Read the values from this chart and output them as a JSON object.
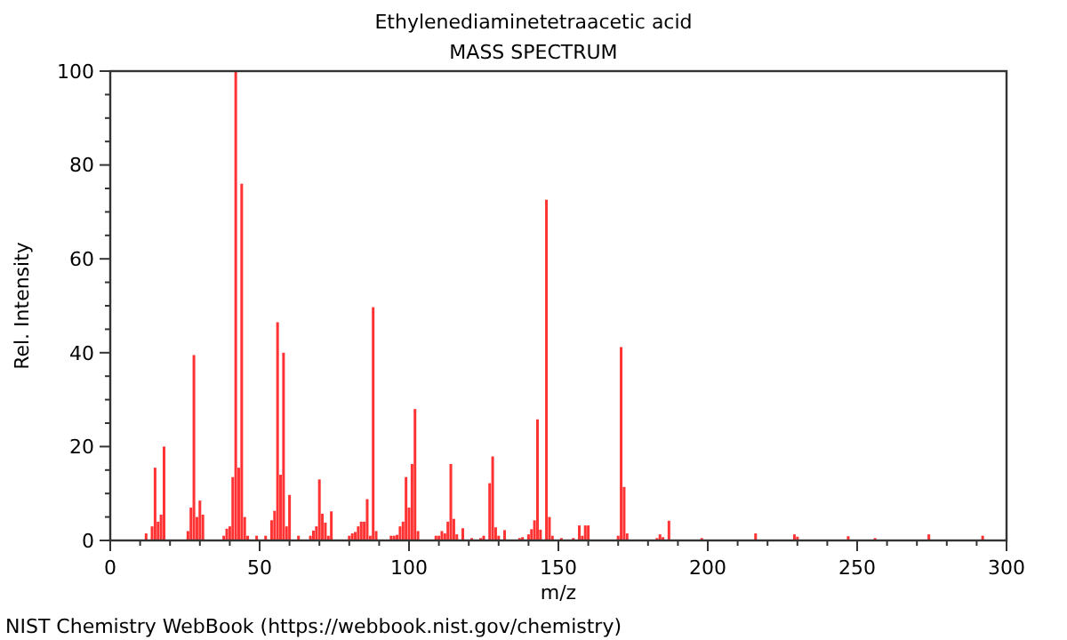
{
  "chart_data": {
    "type": "bar",
    "title": "Ethylenediaminetetraacetic acid",
    "subtitle": "MASS SPECTRUM",
    "xlabel": "m/z",
    "ylabel": "Rel. Intensity",
    "annotations": [
      "NIST Chemistry WebBook (https://webbook.nist.gov/chemistry)"
    ],
    "x": [
      12,
      14,
      15,
      16,
      17,
      18,
      26,
      27,
      28,
      29,
      30,
      31,
      38,
      39,
      40,
      41,
      42,
      43,
      44,
      45,
      46,
      49,
      52,
      54,
      55,
      56,
      57,
      58,
      59,
      60,
      63,
      67,
      68,
      69,
      70,
      71,
      72,
      73,
      74,
      80,
      81,
      82,
      83,
      84,
      85,
      86,
      87,
      88,
      89,
      94,
      95,
      96,
      97,
      98,
      99,
      100,
      101,
      102,
      103,
      109,
      110,
      111,
      112,
      113,
      114,
      115,
      116,
      118,
      121,
      124,
      125,
      127,
      128,
      129,
      130,
      132,
      137,
      138,
      140,
      141,
      142,
      143,
      144,
      146,
      147,
      148,
      151,
      155,
      157,
      158,
      159,
      160,
      170,
      171,
      172,
      173,
      183,
      184,
      185,
      187,
      198,
      216,
      229,
      230,
      247,
      256,
      274,
      292
    ],
    "values": [
      1.5,
      3,
      15.5,
      4,
      5.5,
      20,
      2,
      7,
      39.5,
      5,
      8.5,
      5.5,
      1,
      2.5,
      3,
      13.5,
      100,
      15.5,
      76,
      5,
      1,
      1,
      1,
      4.3,
      6.3,
      46.5,
      14,
      40,
      3,
      9.7,
      1,
      1,
      2.1,
      3,
      13,
      5.7,
      3.8,
      1,
      6.2,
      1,
      1.5,
      1.8,
      3,
      4,
      4,
      8.8,
      1,
      49.7,
      2,
      1,
      1,
      1.2,
      3,
      4,
      13.5,
      7,
      16.3,
      28,
      2,
      1,
      1,
      2,
      1.5,
      4,
      16.3,
      4.6,
      1.3,
      2.6,
      0.5,
      0.5,
      1,
      12.2,
      17.9,
      2.8,
      1,
      2.2,
      0.5,
      0.7,
      1.3,
      2.4,
      4.3,
      25.8,
      2.3,
      72.6,
      5,
      1,
      0.5,
      0.5,
      3.2,
      1,
      3.2,
      3.2,
      1,
      41.2,
      11.4,
      1.5,
      0.5,
      1.3,
      0.7,
      4.2,
      0.5,
      1.5,
      1.3,
      0.8,
      0.9,
      0.5,
      1.3,
      1
    ],
    "color": "#ff3333",
    "xlim": [
      0,
      300
    ],
    "xticks": [
      0,
      {
        "value": 10,
        "label": null
      },
      {
        "value": 20,
        "label": null
      },
      {
        "value": 30,
        "label": null
      },
      {
        "value": 40,
        "label": null
      },
      50,
      {
        "value": 60,
        "label": null
      },
      {
        "value": 70,
        "label": null
      },
      {
        "value": 80,
        "label": null
      },
      {
        "value": 90,
        "label": null
      },
      100,
      {
        "value": 110,
        "label": null
      },
      {
        "value": 120,
        "label": null
      },
      {
        "value": 130,
        "label": null
      },
      {
        "value": 140,
        "label": null
      },
      150,
      {
        "value": 160,
        "label": null
      },
      {
        "value": 170,
        "label": null
      },
      {
        "value": 180,
        "label": null
      },
      {
        "value": 190,
        "label": null
      },
      200,
      {
        "value": 210,
        "label": null
      },
      {
        "value": 220,
        "label": null
      },
      {
        "value": 230,
        "label": null
      },
      {
        "value": 240,
        "label": null
      },
      250,
      {
        "value": 260,
        "label": null
      },
      {
        "value": 270,
        "label": null
      },
      {
        "value": 280,
        "label": null
      },
      {
        "value": 290,
        "label": null
      },
      300
    ],
    "ylim": [
      0,
      100
    ],
    "yticks": [
      0,
      {
        "value": 5,
        "label": null
      },
      {
        "value": 10,
        "label": null
      },
      {
        "value": 15,
        "label": null
      },
      20,
      {
        "value": 25,
        "label": null
      },
      {
        "value": 30,
        "label": null
      },
      {
        "value": 35,
        "label": null
      },
      40,
      {
        "value": 45,
        "label": null
      },
      {
        "value": 50,
        "label": null
      },
      {
        "value": 55,
        "label": null
      },
      60,
      {
        "value": 65,
        "label": null
      },
      {
        "value": 70,
        "label": null
      },
      {
        "value": 75,
        "label": null
      },
      80,
      {
        "value": 85,
        "label": null
      },
      {
        "value": 90,
        "label": null
      },
      {
        "value": 95,
        "label": null
      },
      100
    ],
    "grid": false
  }
}
